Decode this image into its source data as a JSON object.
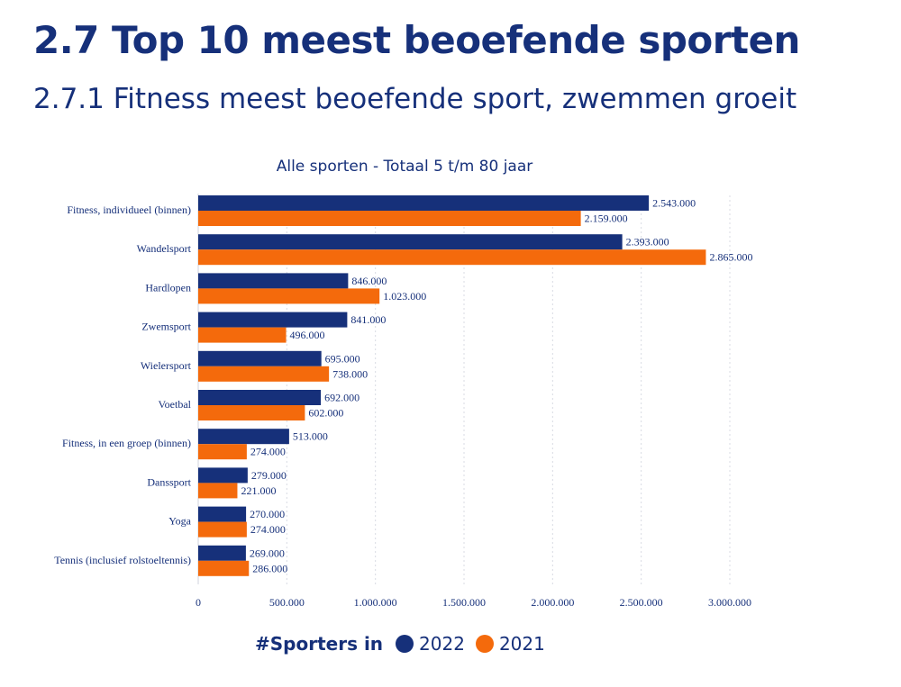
{
  "header": {
    "title": "2.7 Top 10 meest beoefende sporten",
    "subtitle": "2.7.1 Fitness meest beoefende sport, zwemmen groeit"
  },
  "chart_data": {
    "type": "bar",
    "orientation": "horizontal",
    "title": "Alle sporten - Totaal 5 t/m 80 jaar",
    "categories": [
      "Fitness, individueel (binnen)",
      "Wandelsport",
      "Hardlopen",
      "Zwemsport",
      "Wielersport",
      "Voetbal",
      "Fitness, in een groep (binnen)",
      "Danssport",
      "Yoga",
      "Tennis (inclusief rolstoeltennis)"
    ],
    "series": [
      {
        "name": "2022",
        "color": "#16307a",
        "values": [
          2543000,
          2393000,
          846000,
          841000,
          695000,
          692000,
          513000,
          279000,
          270000,
          269000
        ],
        "labels": [
          "2.543.000",
          "2.393.000",
          "846.000",
          "841.000",
          "695.000",
          "692.000",
          "513.000",
          "279.000",
          "270.000",
          "269.000"
        ]
      },
      {
        "name": "2021",
        "color": "#f46a0c",
        "values": [
          2159000,
          2865000,
          1023000,
          496000,
          738000,
          602000,
          274000,
          221000,
          274000,
          286000
        ],
        "labels": [
          "2.159.000",
          "2.865.000",
          "1.023.000",
          "496.000",
          "738.000",
          "602.000",
          "274.000",
          "221.000",
          "274.000",
          "286.000"
        ]
      }
    ],
    "xlim": [
      0,
      3000000
    ],
    "xticks": [
      0,
      500000,
      1000000,
      1500000,
      2000000,
      2500000,
      3000000
    ],
    "xtick_labels": [
      "0",
      "500.000",
      "1.000.000",
      "1.500.000",
      "2.000.000",
      "2.500.000",
      "3.000.000"
    ],
    "grid": "vertical-dotted",
    "legend": {
      "title": "#Sporters in",
      "placement": "bottom",
      "items": [
        "2022",
        "2021"
      ]
    }
  }
}
